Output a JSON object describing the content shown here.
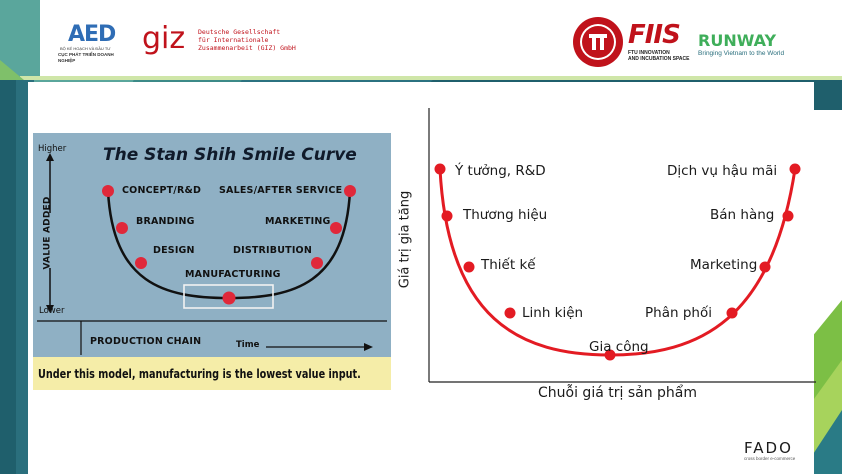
{
  "header": {
    "aed_logo_text": "AED",
    "aed_caption_1": "BỘ KẾ HOẠCH VÀ ĐẦU TƯ",
    "aed_caption_2": "CỤC PHÁT TRIỂN DOANH NGHIỆP",
    "giz_logo_text": "giz",
    "giz_line_1": "Deutsche Gesellschaft",
    "giz_line_2": "für Internationale",
    "giz_line_3": "Zusammenarbeit (GIZ) GmbH",
    "fiis_logo_text": "FIIS",
    "fiis_caption_1": "FTU INNOVATION",
    "fiis_caption_2": "AND INCUBATION SPACE",
    "runway_title": "RUNWAY",
    "runway_tagline": "Bringing Vietnam to the World"
  },
  "shih_image": {
    "title": "The Stan Shih Smile Curve",
    "higher": "Higher",
    "lower": "Lower",
    "y_axis_label": "VALUE ADDED",
    "left_labels": [
      "CONCEPT/R&D",
      "BRANDING",
      "DESIGN"
    ],
    "right_labels": [
      "SALES/AFTER SERVICE",
      "MARKETING",
      "DISTRIBUTION"
    ],
    "bottom_label": "MANUFACTURING",
    "production_chain": "PRODUCTION CHAIN",
    "time": "Time",
    "caption": "Under this model, manufacturing is the lowest value input."
  },
  "smile_chart": {
    "y_axis_label": "Giá trị gia tăng",
    "x_axis_label": "Chuỗi giá trị sản phẩm",
    "left_labels": [
      "Ý tưởng, R&D",
      "Thương hiệu",
      "Thiết kế",
      "Linh kiện"
    ],
    "bottom_label": "Gia công",
    "right_labels": [
      "Dịch vụ hậu mãi",
      "Bán hàng",
      "Marketing",
      "Phân phối"
    ],
    "curve_color": "#e31b23"
  },
  "footer": {
    "brand": "FADO",
    "tagline": "cross border e-commerce"
  }
}
